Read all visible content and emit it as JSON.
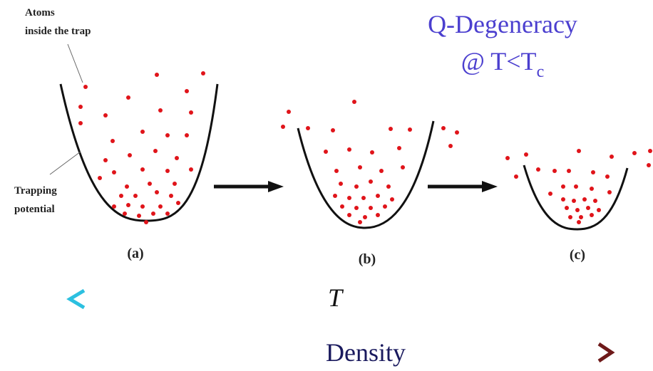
{
  "labels": {
    "atoms": [
      "Atoms",
      "inside the trap"
    ],
    "trapping": [
      "Trapping",
      "potential"
    ]
  },
  "panels": [
    "(a)",
    "(b)",
    "(c)"
  ],
  "title": "Q-Degeneracy",
  "condition": {
    "text": "@ T<T",
    "sub": "c"
  },
  "temperature": "T",
  "density": "Density"
}
